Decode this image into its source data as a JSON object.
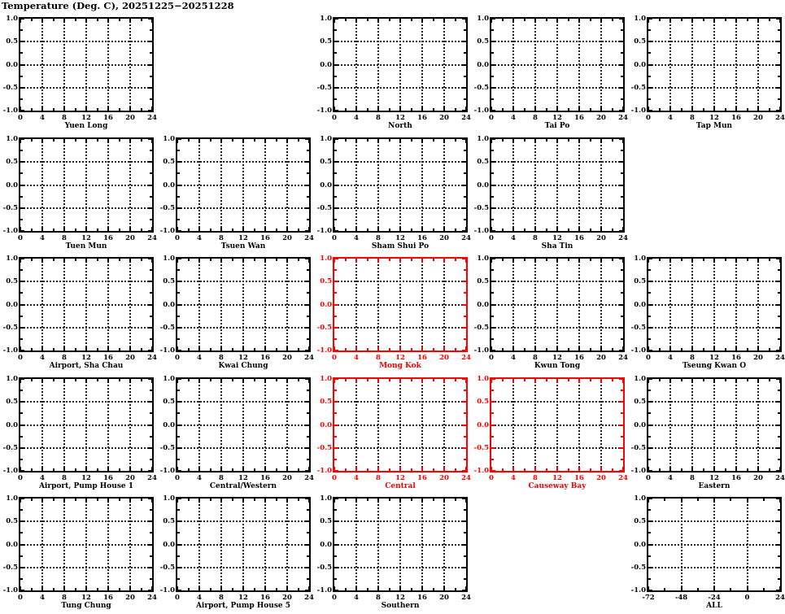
{
  "page_title": "Temperature (Deg. C), 20251225−20251228",
  "colors": {
    "axis_black": "#000000",
    "axis_red": "#ff0000",
    "grid": "#222222",
    "background": "#ffffff"
  },
  "chart_defaults": {
    "type": "line",
    "series": [],
    "xlim": [
      0,
      24
    ],
    "ylim": [
      -1.0,
      1.0
    ],
    "x_major_ticks": [
      0,
      4,
      8,
      12,
      16,
      20,
      24
    ],
    "x_tick_labels": [
      "0",
      "4",
      "8",
      "12",
      "16",
      "20",
      "24"
    ],
    "x_minor_ticks": [
      2,
      6,
      10,
      14,
      18,
      22
    ],
    "y_major_ticks": [
      1.0,
      0.5,
      0.0,
      -0.5,
      -1.0
    ],
    "y_tick_labels": [
      "1.0",
      "0.5",
      "0.0",
      "-0.5",
      "-1.0"
    ],
    "y_minor_ticks": [
      0.75,
      0.25,
      -0.25,
      -0.75
    ],
    "grid": true,
    "legend": "none"
  },
  "chart_data": [
    {
      "title": "Yuen Long",
      "row": 1,
      "col": 1,
      "color": "black"
    },
    {
      "title": "North",
      "row": 1,
      "col": 3,
      "color": "black"
    },
    {
      "title": "Tai Po",
      "row": 1,
      "col": 4,
      "color": "black"
    },
    {
      "title": "Tap Mun",
      "row": 1,
      "col": 5,
      "color": "black"
    },
    {
      "title": "Tuen Mun",
      "row": 2,
      "col": 1,
      "color": "black"
    },
    {
      "title": "Tsuen Wan",
      "row": 2,
      "col": 2,
      "color": "black"
    },
    {
      "title": "Sham Shui Po",
      "row": 2,
      "col": 3,
      "color": "black"
    },
    {
      "title": "Sha Tin",
      "row": 2,
      "col": 4,
      "color": "black"
    },
    {
      "title": "Airport, Sha Chau",
      "row": 3,
      "col": 1,
      "color": "black"
    },
    {
      "title": "Kwai Chung",
      "row": 3,
      "col": 2,
      "color": "black"
    },
    {
      "title": "Mong Kok",
      "row": 3,
      "col": 3,
      "color": "red"
    },
    {
      "title": "Kwun Tong",
      "row": 3,
      "col": 4,
      "color": "black"
    },
    {
      "title": "Tseung Kwan O",
      "row": 3,
      "col": 5,
      "color": "black"
    },
    {
      "title": "Airport, Pump House 1",
      "row": 4,
      "col": 1,
      "color": "black"
    },
    {
      "title": "Central/Western",
      "row": 4,
      "col": 2,
      "color": "black"
    },
    {
      "title": "Central",
      "row": 4,
      "col": 3,
      "color": "red"
    },
    {
      "title": "Causeway Bay",
      "row": 4,
      "col": 4,
      "color": "red"
    },
    {
      "title": "Eastern",
      "row": 4,
      "col": 5,
      "color": "black"
    },
    {
      "title": "Tung Chung",
      "row": 5,
      "col": 1,
      "color": "black"
    },
    {
      "title": "Airport, Pump House 5",
      "row": 5,
      "col": 2,
      "color": "black"
    },
    {
      "title": "Southern",
      "row": 5,
      "col": 3,
      "color": "black"
    },
    {
      "title": "ALL",
      "row": 5,
      "col": 5,
      "color": "black",
      "xlim": [
        -72,
        24
      ],
      "x_major_ticks": [
        -72,
        -48,
        -24,
        0,
        24
      ],
      "x_tick_labels": [
        "-72",
        "-48",
        "-24",
        "0",
        "24"
      ],
      "x_minor_ticks": [
        -60,
        -36,
        -12,
        12
      ]
    }
  ]
}
